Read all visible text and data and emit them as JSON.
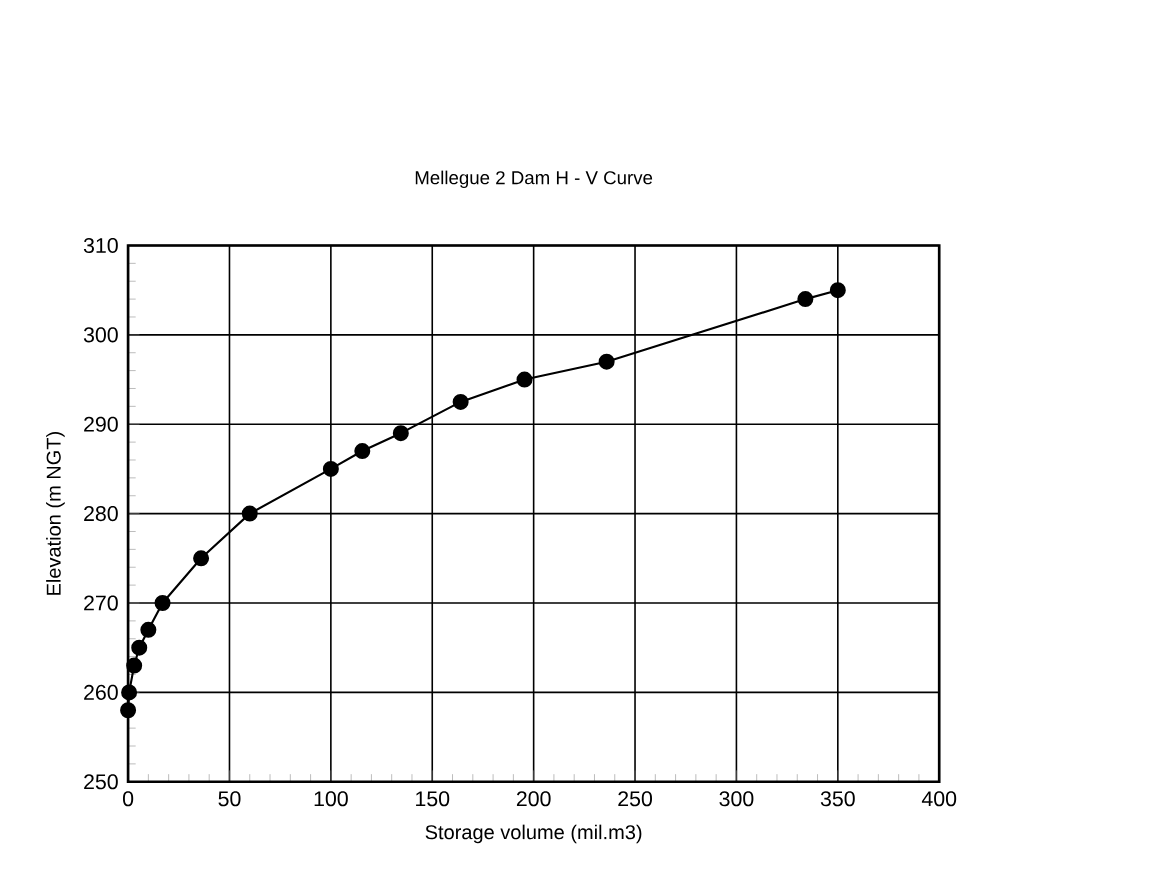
{
  "chart_data": {
    "type": "line",
    "title": "Mellegue 2 Dam  H - V Curve",
    "xlabel": "Storage volume (mil.m3)",
    "ylabel": "Elevation (m NGT)",
    "x": [
      0,
      0.5,
      3,
      5.5,
      10,
      17,
      36,
      60,
      100,
      115.5,
      134.5,
      164,
      195.5,
      236,
      334,
      350
    ],
    "series": [
      {
        "color": "#000000",
        "values": [
          258,
          260,
          263,
          265,
          267,
          270,
          275,
          280,
          285,
          287,
          289,
          292.5,
          295,
          297,
          304,
          305
        ]
      }
    ],
    "xlim": [
      0,
      400
    ],
    "xticks": [
      0,
      50,
      100,
      150,
      200,
      250,
      300,
      350,
      400
    ],
    "ylim": [
      250,
      310
    ],
    "yticks": [
      250,
      260,
      270,
      280,
      290,
      300,
      310
    ],
    "grid": true,
    "marker": "circle",
    "line_style": "solid"
  }
}
